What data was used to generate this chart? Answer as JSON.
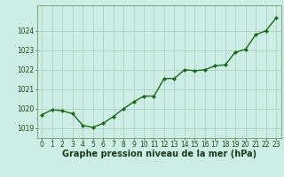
{
  "x": [
    0,
    1,
    2,
    3,
    4,
    5,
    6,
    7,
    8,
    9,
    10,
    11,
    12,
    13,
    14,
    15,
    16,
    17,
    18,
    19,
    20,
    21,
    22,
    23
  ],
  "y": [
    1019.7,
    1019.95,
    1019.9,
    1019.75,
    1019.15,
    1019.05,
    1019.25,
    1019.6,
    1020.0,
    1020.35,
    1020.65,
    1020.65,
    1021.55,
    1021.55,
    1022.0,
    1021.95,
    1022.0,
    1022.2,
    1022.25,
    1022.9,
    1023.05,
    1023.8,
    1024.0,
    1024.65
  ],
  "line_color": "#1a6b1a",
  "marker_color": "#1a6b1a",
  "bg_color": "#cceee4",
  "grid_color": "#aaccbb",
  "xlabel": "Graphe pression niveau de la mer (hPa)",
  "ylim": [
    1018.5,
    1025.3
  ],
  "yticks": [
    1019,
    1020,
    1021,
    1022,
    1023,
    1024
  ],
  "xticks": [
    0,
    1,
    2,
    3,
    4,
    5,
    6,
    7,
    8,
    9,
    10,
    11,
    12,
    13,
    14,
    15,
    16,
    17,
    18,
    19,
    20,
    21,
    22,
    23
  ],
  "xlabel_fontsize": 7,
  "tick_fontsize": 5.5,
  "line_width": 1.0,
  "marker_size": 2.2
}
